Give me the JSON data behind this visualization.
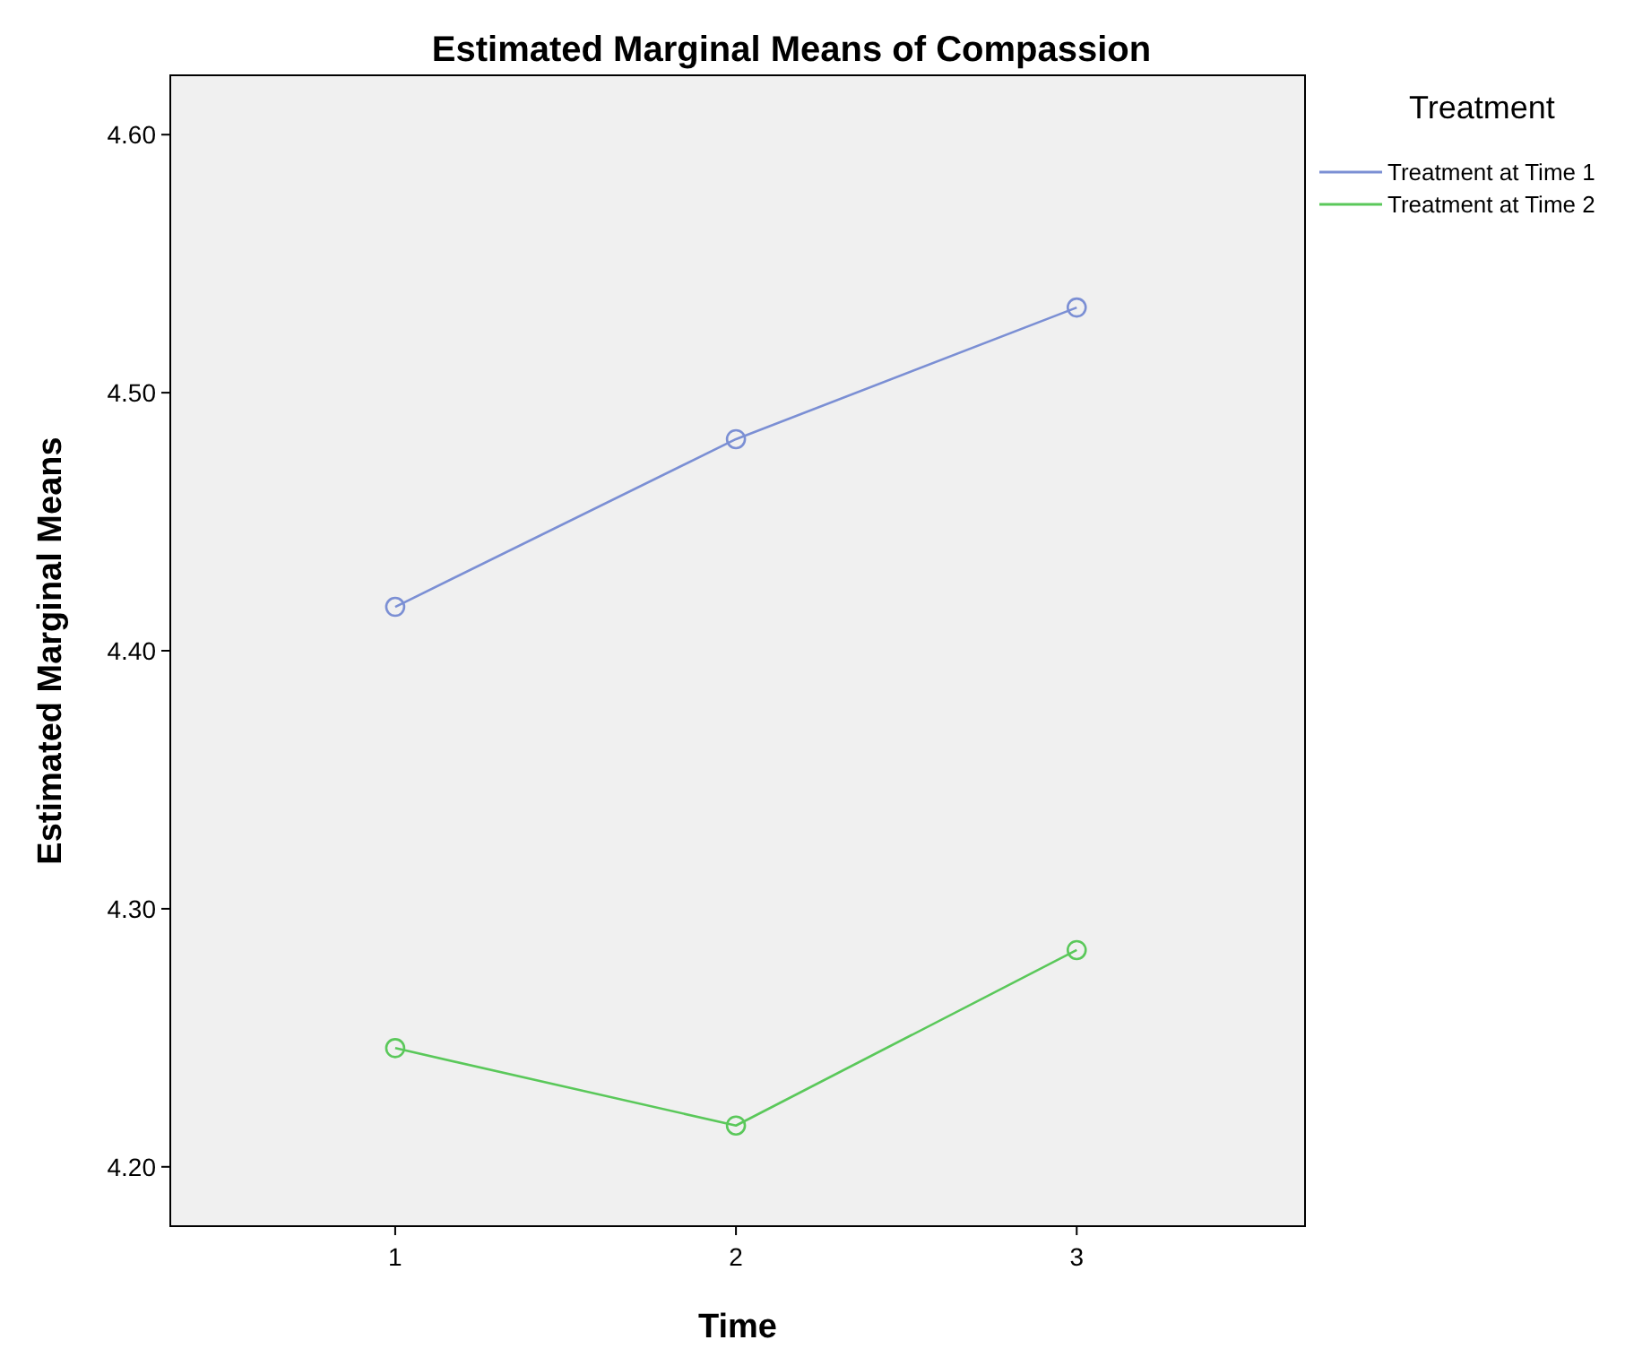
{
  "chart_data": {
    "type": "line",
    "title": "Estimated Marginal Means of Compassion",
    "xlabel": "Time",
    "ylabel": "Estimated Marginal Means",
    "legend_title": "Treatment",
    "x": [
      1,
      2,
      3
    ],
    "xlim": [
      0.34,
      3.67
    ],
    "xticks": [
      1,
      2,
      3
    ],
    "ylim": [
      4.177,
      4.623
    ],
    "yticks": [
      {
        "value": 4.2,
        "label": "4.20"
      },
      {
        "value": 4.3,
        "label": "4.30"
      },
      {
        "value": 4.4,
        "label": "4.40"
      },
      {
        "value": 4.5,
        "label": "4.50"
      },
      {
        "value": 4.6,
        "label": "4.60"
      }
    ],
    "series": [
      {
        "name": "Treatment at Time 1",
        "color": "#7b8fd4",
        "values": [
          4.417,
          4.482,
          4.533
        ]
      },
      {
        "name": "Treatment at Time 2",
        "color": "#5ac85a",
        "values": [
          4.246,
          4.216,
          4.284
        ]
      }
    ],
    "marker": "circle",
    "legend": "top right"
  }
}
